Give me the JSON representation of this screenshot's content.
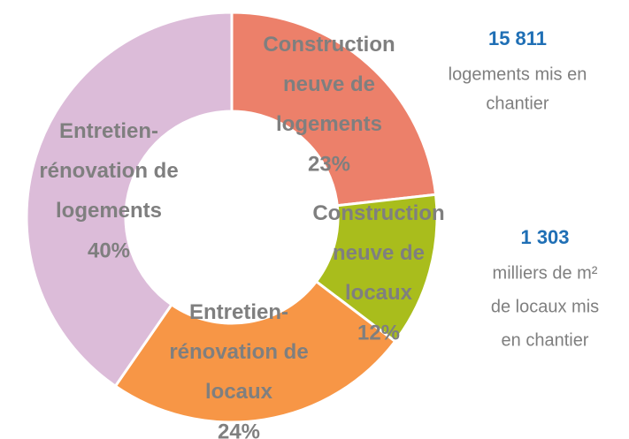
{
  "chart_data": {
    "type": "donut",
    "categories": [
      "Construction neuve de logements",
      "Construction neuve de locaux",
      "Entretien-rénovation de locaux",
      "Entretien-rénovation de logements"
    ],
    "values": [
      23,
      12,
      24,
      40
    ],
    "value_labels": [
      "23%",
      "12%",
      "24%",
      "40%"
    ],
    "colors": [
      "#ec806a",
      "#a9bd1c",
      "#f79646",
      "#dcbcd9"
    ],
    "annotations": [
      {
        "value": "15 811",
        "text": [
          "logements mis en",
          "chantier"
        ]
      },
      {
        "value": "1 303",
        "text": [
          "milliers de m²",
          "de locaux mis",
          "en chantier"
        ]
      }
    ]
  }
}
